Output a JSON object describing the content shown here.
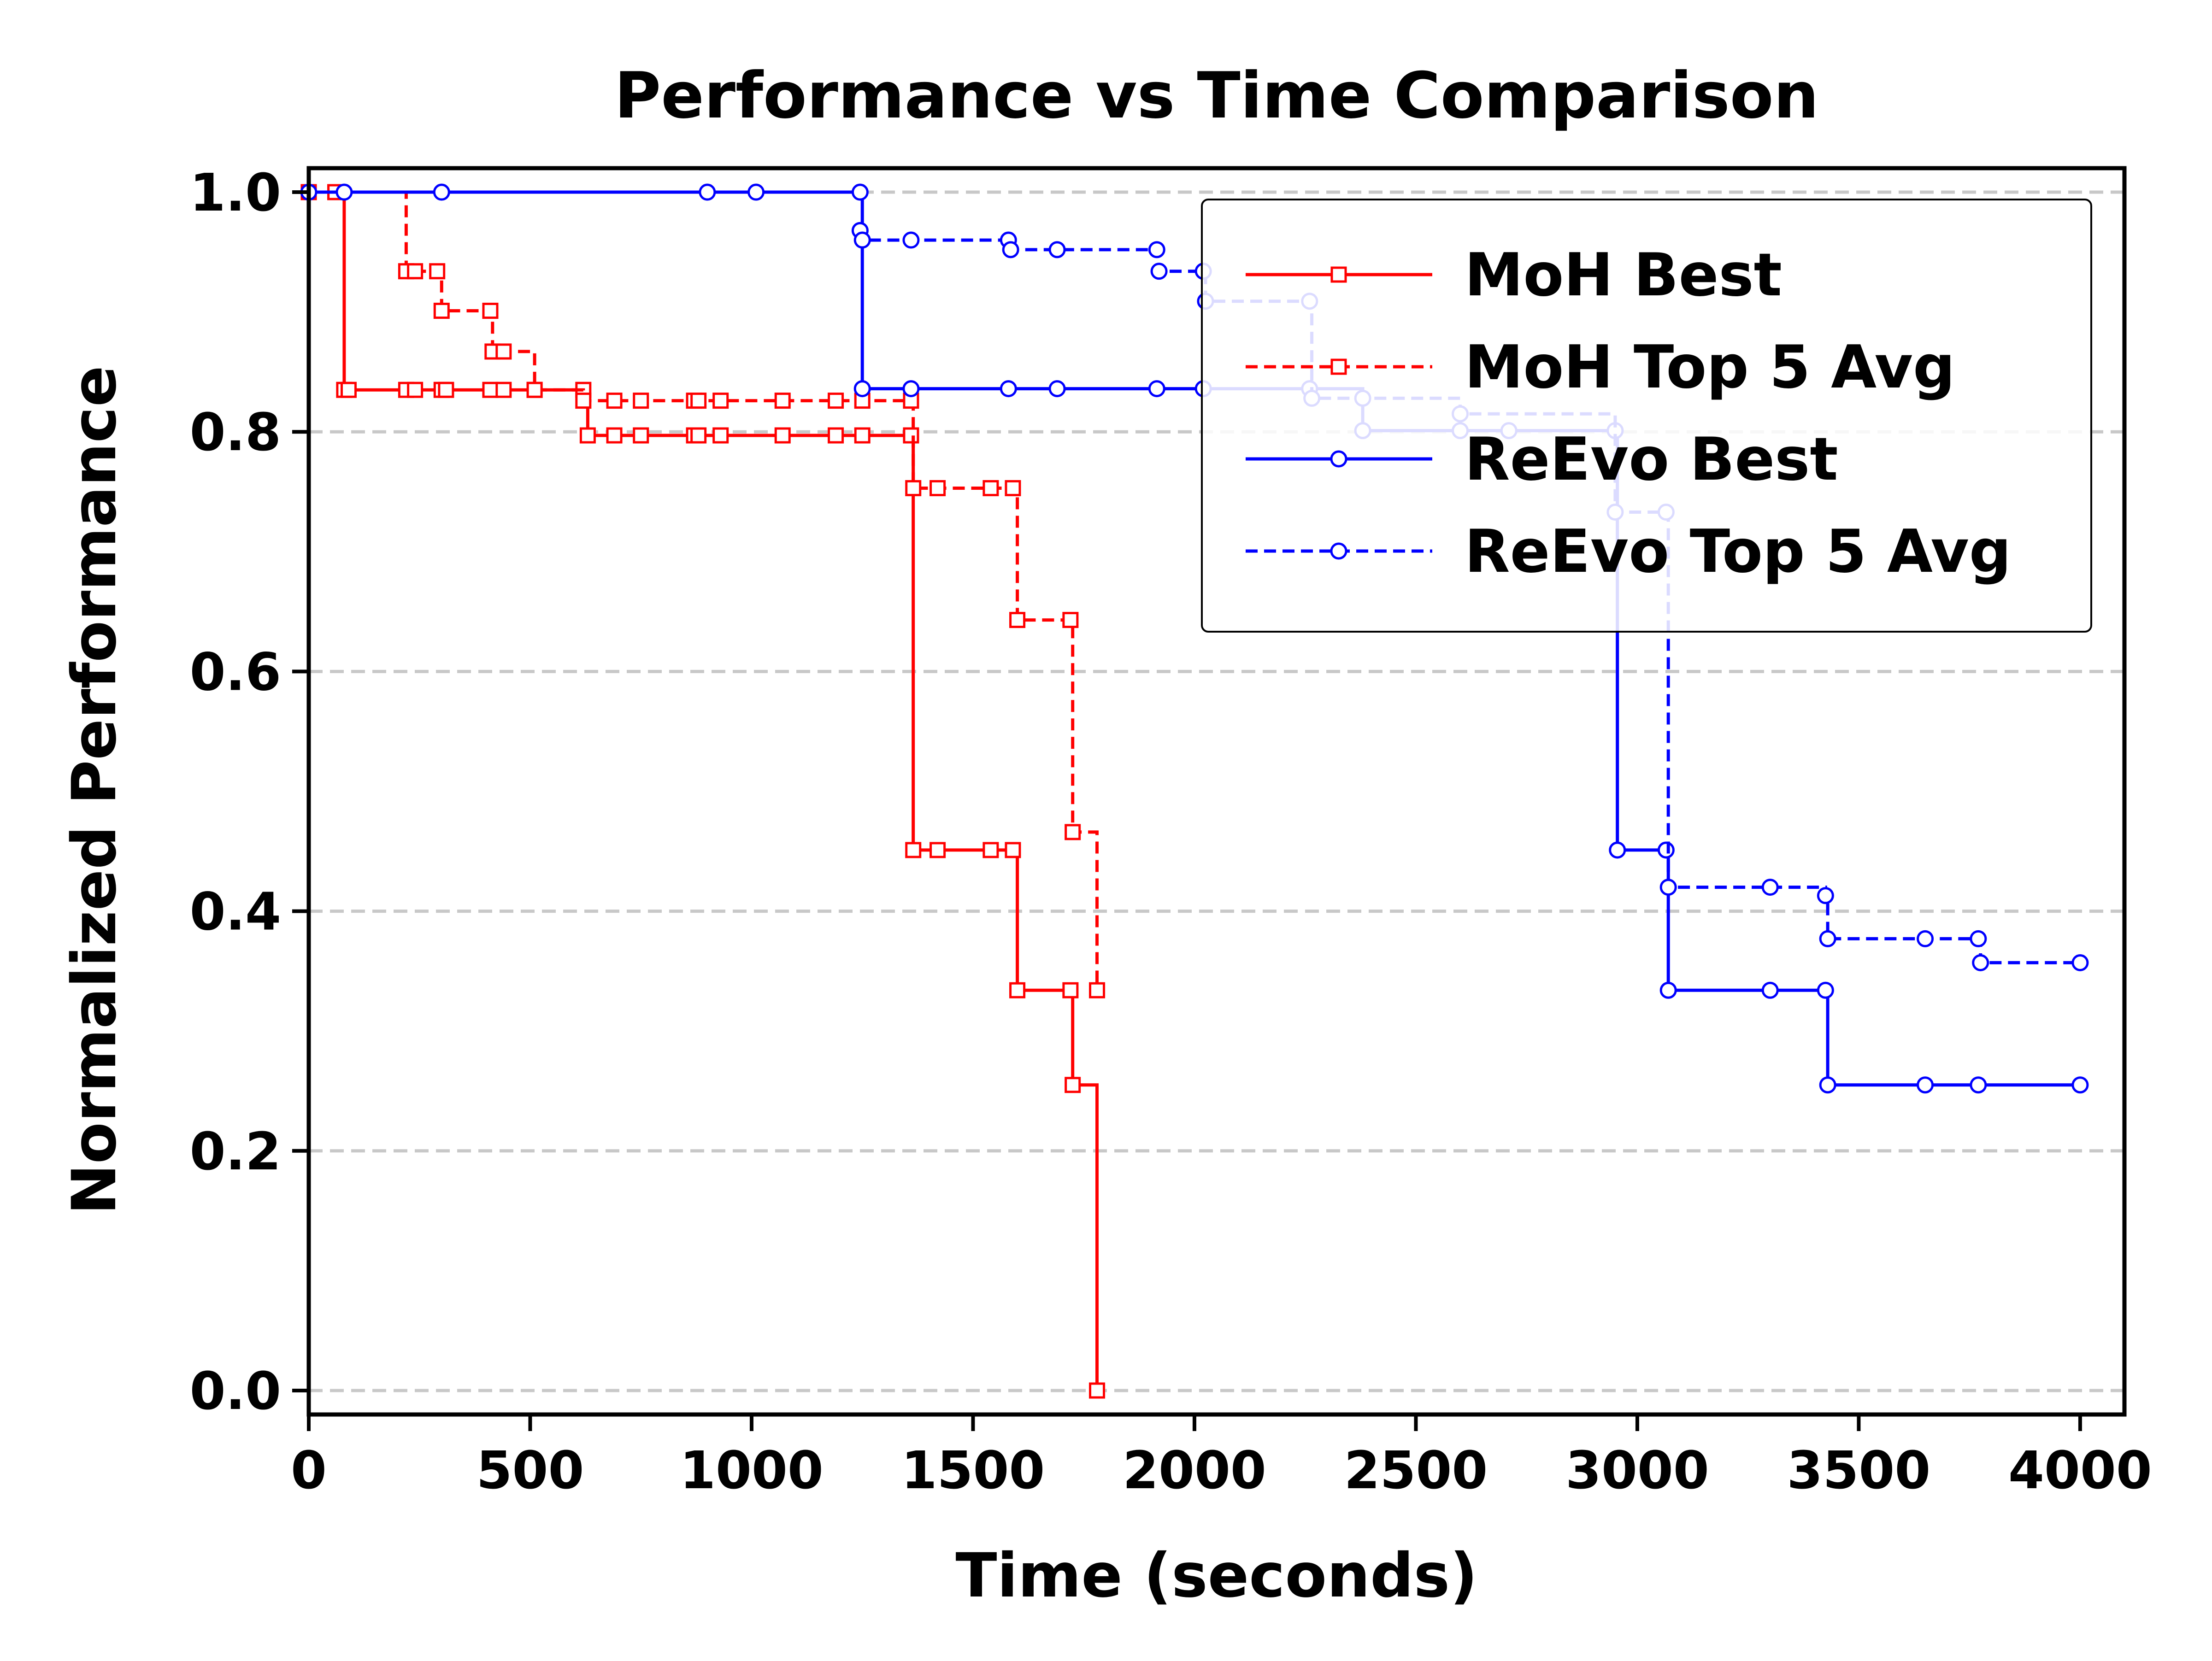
{
  "chart_data": {
    "type": "line",
    "title": "Performance vs Time Comparison",
    "xlabel": "Time (seconds)",
    "ylabel": "Normalized Performance",
    "xlim": [
      0,
      4100
    ],
    "ylim": [
      -0.02,
      1.02
    ],
    "xticks": [
      0,
      500,
      1000,
      1500,
      2000,
      2500,
      3000,
      3500,
      4000
    ],
    "xtick_labels": [
      "0",
      "500",
      "1000",
      "1500",
      "2000",
      "2500",
      "3000",
      "3500",
      "4000"
    ],
    "yticks": [
      0.0,
      0.2,
      0.4,
      0.6,
      0.8,
      1.0
    ],
    "ytick_labels": [
      "0.0",
      "0.2",
      "0.4",
      "0.6",
      "0.8",
      "1.0"
    ],
    "grid": "horizontal dashed",
    "legend_position": "top-right",
    "series": [
      {
        "name": "MoH Best",
        "color": "#ff0000",
        "line_style": "solid",
        "marker": "square",
        "step": true,
        "x": [
          0,
          60,
          80,
          90,
          220,
          240,
          300,
          310,
          410,
          440,
          510,
          620,
          630,
          690,
          750,
          870,
          880,
          930,
          1070,
          1190,
          1250,
          1360,
          1365,
          1420,
          1540,
          1590,
          1600,
          1720,
          1725,
          1780
        ],
        "y": [
          1.0,
          1.0,
          0.835,
          0.835,
          0.835,
          0.835,
          0.835,
          0.835,
          0.835,
          0.835,
          0.835,
          0.835,
          0.797,
          0.797,
          0.797,
          0.797,
          0.797,
          0.797,
          0.797,
          0.797,
          0.797,
          0.797,
          0.451,
          0.451,
          0.451,
          0.451,
          0.334,
          0.334,
          0.255,
          0.0
        ]
      },
      {
        "name": "MoH Top 5 Avg",
        "color": "#ff0000",
        "line_style": "dashed",
        "marker": "square",
        "step": true,
        "x": [
          0,
          60,
          220,
          240,
          290,
          300,
          410,
          415,
          440,
          510,
          620,
          690,
          750,
          870,
          880,
          930,
          1070,
          1190,
          1250,
          1360,
          1365,
          1420,
          1540,
          1590,
          1600,
          1720,
          1725,
          1780
        ],
        "y": [
          1.0,
          1.0,
          0.934,
          0.934,
          0.934,
          0.901,
          0.901,
          0.867,
          0.867,
          0.835,
          0.826,
          0.826,
          0.826,
          0.826,
          0.826,
          0.826,
          0.826,
          0.826,
          0.826,
          0.826,
          0.753,
          0.753,
          0.753,
          0.753,
          0.643,
          0.643,
          0.466,
          0.334
        ]
      },
      {
        "name": "ReEvo Best",
        "color": "#0000ff",
        "line_style": "solid",
        "marker": "circle",
        "step": true,
        "x": [
          0,
          80,
          300,
          900,
          1010,
          1245,
          1250,
          1360,
          1580,
          1690,
          1915,
          2020,
          2260,
          2380,
          2600,
          2710,
          2950,
          2955,
          3065,
          3070,
          3300,
          3425,
          3430,
          3650,
          3770,
          4000
        ],
        "y": [
          1.0,
          1.0,
          1.0,
          1.0,
          1.0,
          1.0,
          0.836,
          0.836,
          0.836,
          0.836,
          0.836,
          0.836,
          0.836,
          0.801,
          0.801,
          0.801,
          0.801,
          0.451,
          0.451,
          0.334,
          0.334,
          0.334,
          0.255,
          0.255,
          0.255,
          0.255
        ]
      },
      {
        "name": "ReEvo Top 5 Avg",
        "color": "#0000ff",
        "line_style": "dashed",
        "marker": "circle",
        "step": true,
        "x": [
          1245,
          1250,
          1360,
          1580,
          1585,
          1690,
          1915,
          1920,
          2020,
          2025,
          2260,
          2265,
          2380,
          2600,
          2950,
          3065,
          3070,
          3300,
          3425,
          3430,
          3650,
          3770,
          3775,
          4000
        ],
        "y": [
          0.968,
          0.96,
          0.96,
          0.96,
          0.952,
          0.952,
          0.952,
          0.934,
          0.934,
          0.909,
          0.909,
          0.828,
          0.828,
          0.815,
          0.733,
          0.733,
          0.42,
          0.42,
          0.413,
          0.377,
          0.377,
          0.377,
          0.357,
          0.357
        ]
      }
    ]
  }
}
